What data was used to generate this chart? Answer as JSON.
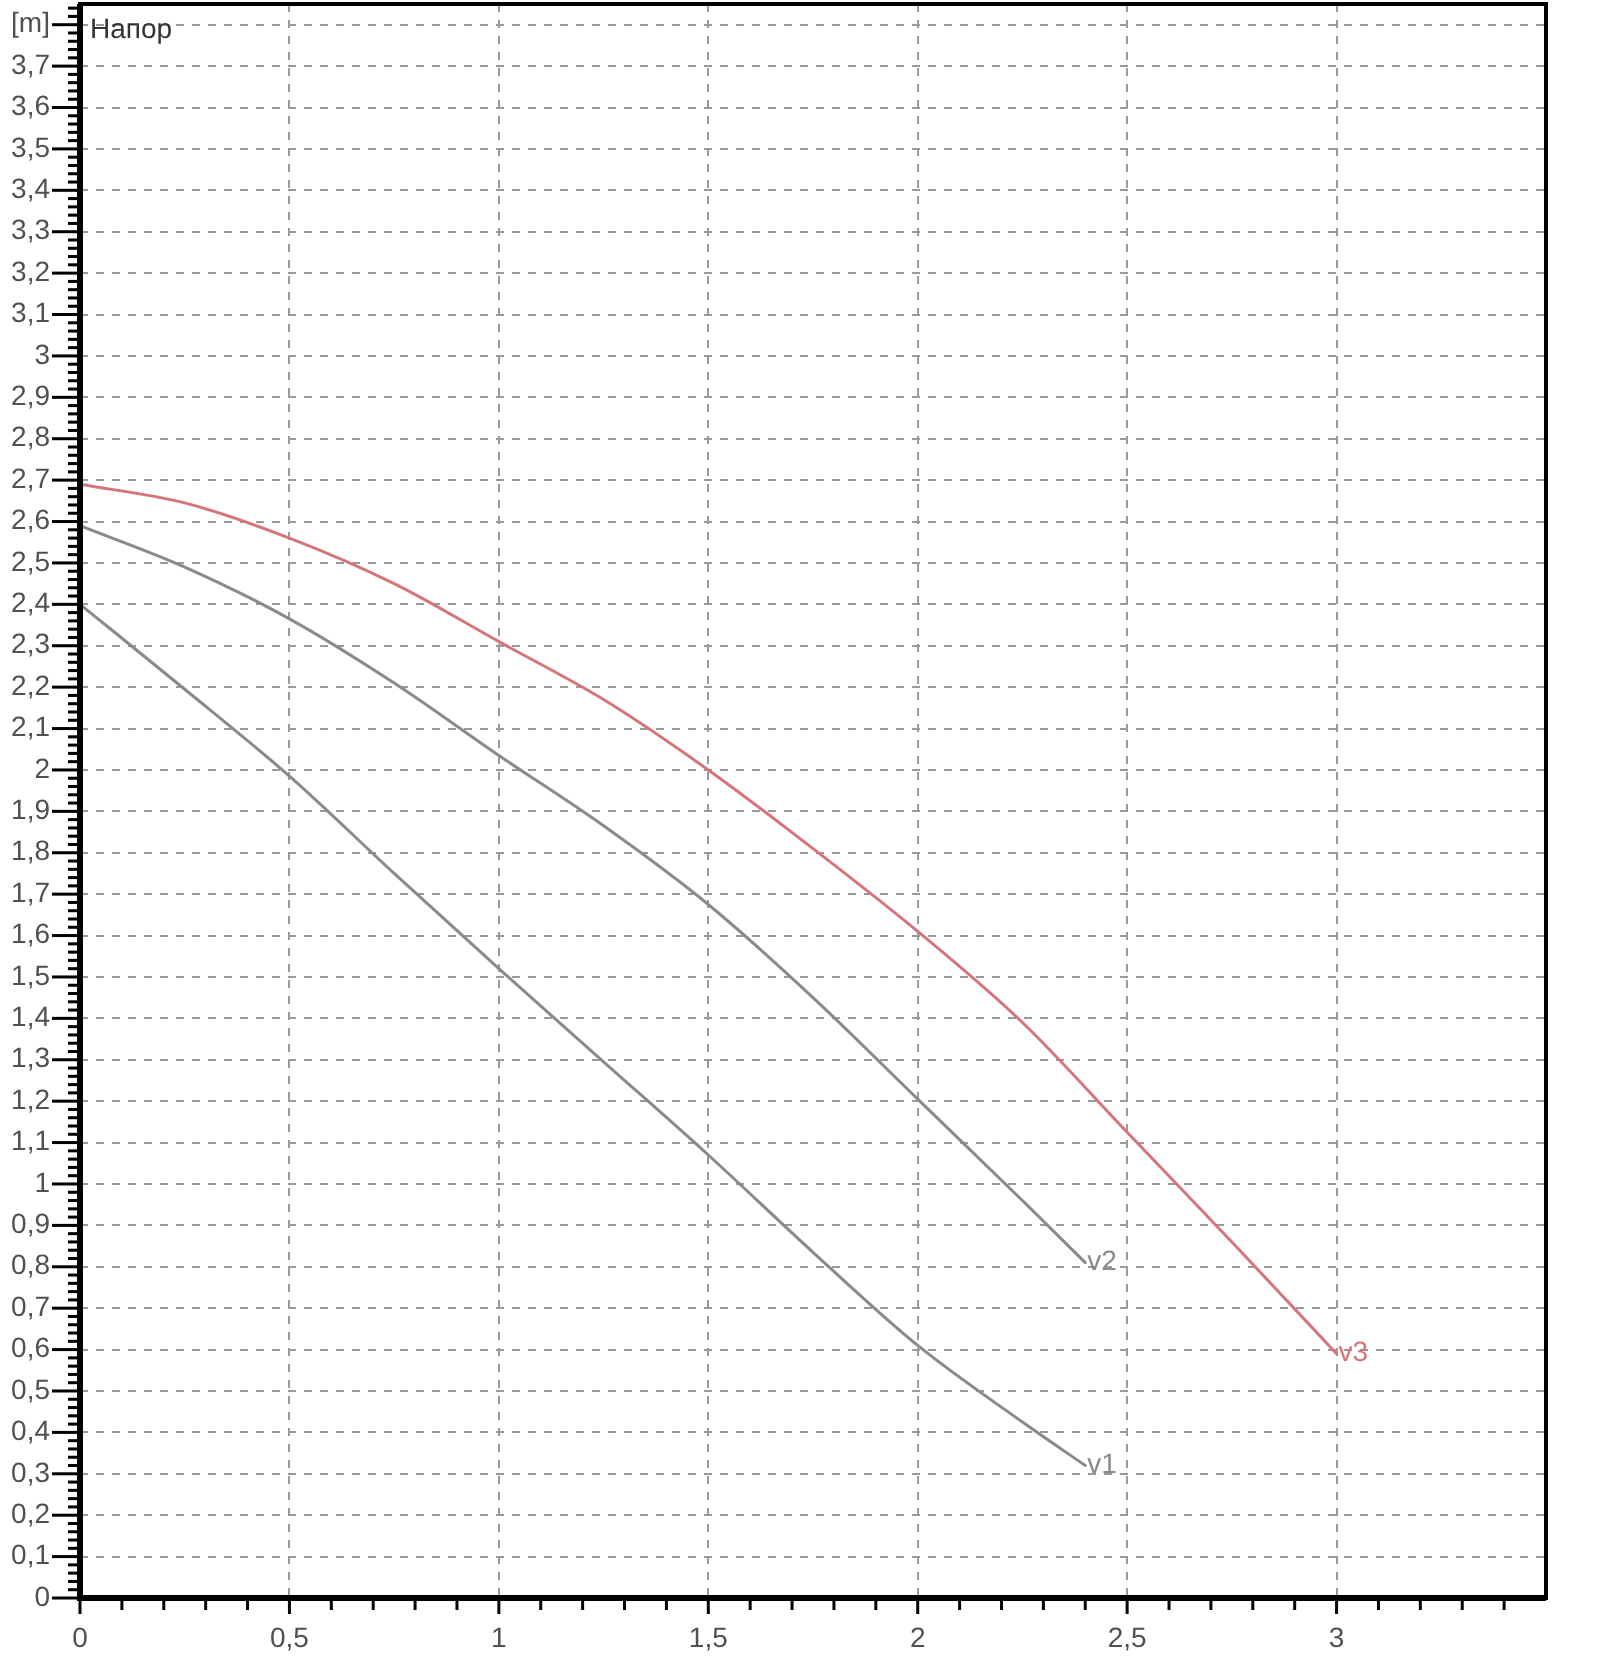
{
  "chart_data": {
    "type": "line",
    "title": "Напор",
    "series": [
      {
        "name": "v1",
        "color": "#8a8a8a",
        "x": [
          0,
          0.25,
          0.5,
          0.75,
          1,
          1.25,
          1.5,
          1.75,
          2,
          2.25,
          2.4
        ],
        "values": [
          2.4,
          2.195,
          1.985,
          1.75,
          1.52,
          1.295,
          1.07,
          0.835,
          0.61,
          0.425,
          0.32
        ]
      },
      {
        "name": "v2",
        "color": "#8a8a8a",
        "x": [
          0,
          0.25,
          0.5,
          0.75,
          1,
          1.25,
          1.5,
          1.75,
          2,
          2.25,
          2.4
        ],
        "values": [
          2.59,
          2.49,
          2.365,
          2.21,
          2.035,
          1.865,
          1.675,
          1.45,
          1.205,
          0.96,
          0.81
        ]
      },
      {
        "name": "v3",
        "color": "#d4757c",
        "x": [
          0,
          0.25,
          0.5,
          0.75,
          1,
          1.25,
          1.5,
          1.75,
          2,
          2.25,
          2.5,
          2.75,
          3
        ],
        "values": [
          2.69,
          2.645,
          2.56,
          2.45,
          2.31,
          2.17,
          2.0,
          1.81,
          1.61,
          1.39,
          1.125,
          0.86,
          0.59
        ]
      }
    ],
    "xlim": [
      0,
      3.5
    ],
    "ylim": [
      0,
      3.85
    ],
    "xticks": [
      0,
      {
        "value": 0.1,
        "label": null
      },
      {
        "value": 0.2,
        "label": null
      },
      {
        "value": 0.3,
        "label": null
      },
      {
        "value": 0.4,
        "label": null
      },
      {
        "value": 0.5,
        "label": "0,5"
      },
      {
        "value": 0.6,
        "label": null
      },
      {
        "value": 0.7,
        "label": null
      },
      {
        "value": 0.8,
        "label": null
      },
      {
        "value": 0.9,
        "label": null
      },
      1,
      {
        "value": 1.1,
        "label": null
      },
      {
        "value": 1.2,
        "label": null
      },
      {
        "value": 1.3,
        "label": null
      },
      {
        "value": 1.4,
        "label": null
      },
      {
        "value": 1.5,
        "label": "1,5"
      },
      {
        "value": 1.6,
        "label": null
      },
      {
        "value": 1.7,
        "label": null
      },
      {
        "value": 1.8,
        "label": null
      },
      {
        "value": 1.9,
        "label": null
      },
      2,
      {
        "value": 2.1,
        "label": null
      },
      {
        "value": 2.2,
        "label": null
      },
      {
        "value": 2.3,
        "label": null
      },
      {
        "value": 2.4,
        "label": null
      },
      {
        "value": 2.5,
        "label": "2,5"
      },
      {
        "value": 2.6,
        "label": null
      },
      {
        "value": 2.7,
        "label": null
      },
      {
        "value": 2.8,
        "label": null
      },
      {
        "value": 2.9,
        "label": null
      },
      3,
      {
        "value": 3.1,
        "label": null
      },
      {
        "value": 3.2,
        "label": null
      },
      {
        "value": 3.3,
        "label": null
      },
      {
        "value": 3.4,
        "label": null
      }
    ],
    "yticks": [
      0,
      {
        "value": 0.02,
        "label": null
      },
      {
        "value": 0.04,
        "label": null
      },
      {
        "value": 0.06,
        "label": null
      },
      {
        "value": 0.08,
        "label": null
      },
      {
        "value": 0.1,
        "label": "0,1"
      },
      {
        "value": 0.12,
        "label": null
      },
      {
        "value": 0.14,
        "label": null
      },
      {
        "value": 0.16,
        "label": null
      },
      {
        "value": 0.18,
        "label": null
      },
      {
        "value": 0.2,
        "label": "0,2"
      },
      {
        "value": 0.22,
        "label": null
      },
      {
        "value": 0.24,
        "label": null
      },
      {
        "value": 0.26,
        "label": null
      },
      {
        "value": 0.28,
        "label": null
      },
      {
        "value": 0.3,
        "label": "0,3"
      },
      {
        "value": 0.32,
        "label": null
      },
      {
        "value": 0.34,
        "label": null
      },
      {
        "value": 0.36,
        "label": null
      },
      {
        "value": 0.38,
        "label": null
      },
      {
        "value": 0.4,
        "label": "0,4"
      },
      {
        "value": 0.42,
        "label": null
      },
      {
        "value": 0.44,
        "label": null
      },
      {
        "value": 0.46,
        "label": null
      },
      {
        "value": 0.48,
        "label": null
      },
      {
        "value": 0.5,
        "label": "0,5"
      },
      {
        "value": 0.52,
        "label": null
      },
      {
        "value": 0.54,
        "label": null
      },
      {
        "value": 0.56,
        "label": null
      },
      {
        "value": 0.58,
        "label": null
      },
      {
        "value": 0.6,
        "label": "0,6"
      },
      {
        "value": 0.62,
        "label": null
      },
      {
        "value": 0.64,
        "label": null
      },
      {
        "value": 0.66,
        "label": null
      },
      {
        "value": 0.68,
        "label": null
      },
      {
        "value": 0.7,
        "label": "0,7"
      },
      {
        "value": 0.72,
        "label": null
      },
      {
        "value": 0.74,
        "label": null
      },
      {
        "value": 0.76,
        "label": null
      },
      {
        "value": 0.78,
        "label": null
      },
      {
        "value": 0.8,
        "label": "0,8"
      },
      {
        "value": 0.82,
        "label": null
      },
      {
        "value": 0.84,
        "label": null
      },
      {
        "value": 0.86,
        "label": null
      },
      {
        "value": 0.88,
        "label": null
      },
      {
        "value": 0.9,
        "label": "0,9"
      },
      {
        "value": 0.92,
        "label": null
      },
      {
        "value": 0.94,
        "label": null
      },
      {
        "value": 0.96,
        "label": null
      },
      {
        "value": 0.98,
        "label": null
      },
      1,
      {
        "value": 1.02,
        "label": null
      },
      {
        "value": 1.04,
        "label": null
      },
      {
        "value": 1.06,
        "label": null
      },
      {
        "value": 1.08,
        "label": null
      },
      {
        "value": 1.1,
        "label": "1,1"
      },
      {
        "value": 1.12,
        "label": null
      },
      {
        "value": 1.14,
        "label": null
      },
      {
        "value": 1.16,
        "label": null
      },
      {
        "value": 1.18,
        "label": null
      },
      {
        "value": 1.2,
        "label": "1,2"
      },
      {
        "value": 1.22,
        "label": null
      },
      {
        "value": 1.24,
        "label": null
      },
      {
        "value": 1.26,
        "label": null
      },
      {
        "value": 1.28,
        "label": null
      },
      {
        "value": 1.3,
        "label": "1,3"
      },
      {
        "value": 1.32,
        "label": null
      },
      {
        "value": 1.34,
        "label": null
      },
      {
        "value": 1.36,
        "label": null
      },
      {
        "value": 1.38,
        "label": null
      },
      {
        "value": 1.4,
        "label": "1,4"
      },
      {
        "value": 1.42,
        "label": null
      },
      {
        "value": 1.44,
        "label": null
      },
      {
        "value": 1.46,
        "label": null
      },
      {
        "value": 1.48,
        "label": null
      },
      {
        "value": 1.5,
        "label": "1,5"
      },
      {
        "value": 1.52,
        "label": null
      },
      {
        "value": 1.54,
        "label": null
      },
      {
        "value": 1.56,
        "label": null
      },
      {
        "value": 1.58,
        "label": null
      },
      {
        "value": 1.6,
        "label": "1,6"
      },
      {
        "value": 1.62,
        "label": null
      },
      {
        "value": 1.64,
        "label": null
      },
      {
        "value": 1.66,
        "label": null
      },
      {
        "value": 1.68,
        "label": null
      },
      {
        "value": 1.7,
        "label": "1,7"
      },
      {
        "value": 1.72,
        "label": null
      },
      {
        "value": 1.74,
        "label": null
      },
      {
        "value": 1.76,
        "label": null
      },
      {
        "value": 1.78,
        "label": null
      },
      {
        "value": 1.8,
        "label": "1,8"
      },
      {
        "value": 1.82,
        "label": null
      },
      {
        "value": 1.84,
        "label": null
      },
      {
        "value": 1.86,
        "label": null
      },
      {
        "value": 1.88,
        "label": null
      },
      {
        "value": 1.9,
        "label": "1,9"
      },
      {
        "value": 1.92,
        "label": null
      },
      {
        "value": 1.94,
        "label": null
      },
      {
        "value": 1.96,
        "label": null
      },
      {
        "value": 1.98,
        "label": null
      },
      2,
      {
        "value": 2.02,
        "label": null
      },
      {
        "value": 2.04,
        "label": null
      },
      {
        "value": 2.06,
        "label": null
      },
      {
        "value": 2.08,
        "label": null
      },
      {
        "value": 2.1,
        "label": "2,1"
      },
      {
        "value": 2.12,
        "label": null
      },
      {
        "value": 2.14,
        "label": null
      },
      {
        "value": 2.16,
        "label": null
      },
      {
        "value": 2.18,
        "label": null
      },
      {
        "value": 2.2,
        "label": "2,2"
      },
      {
        "value": 2.22,
        "label": null
      },
      {
        "value": 2.24,
        "label": null
      },
      {
        "value": 2.26,
        "label": null
      },
      {
        "value": 2.28,
        "label": null
      },
      {
        "value": 2.3,
        "label": "2,3"
      },
      {
        "value": 2.32,
        "label": null
      },
      {
        "value": 2.34,
        "label": null
      },
      {
        "value": 2.36,
        "label": null
      },
      {
        "value": 2.38,
        "label": null
      },
      {
        "value": 2.4,
        "label": "2,4"
      },
      {
        "value": 2.42,
        "label": null
      },
      {
        "value": 2.44,
        "label": null
      },
      {
        "value": 2.46,
        "label": null
      },
      {
        "value": 2.48,
        "label": null
      },
      {
        "value": 2.5,
        "label": "2,5"
      },
      {
        "value": 2.52,
        "label": null
      },
      {
        "value": 2.54,
        "label": null
      },
      {
        "value": 2.56,
        "label": null
      },
      {
        "value": 2.58,
        "label": null
      },
      {
        "value": 2.6,
        "label": "2,6"
      },
      {
        "value": 2.62,
        "label": null
      },
      {
        "value": 2.64,
        "label": null
      },
      {
        "value": 2.66,
        "label": null
      },
      {
        "value": 2.68,
        "label": null
      },
      {
        "value": 2.7,
        "label": "2,7"
      },
      {
        "value": 2.72,
        "label": null
      },
      {
        "value": 2.74,
        "label": null
      },
      {
        "value": 2.76,
        "label": null
      },
      {
        "value": 2.78,
        "label": null
      },
      {
        "value": 2.8,
        "label": "2,8"
      },
      {
        "value": 2.82,
        "label": null
      },
      {
        "value": 2.84,
        "label": null
      },
      {
        "value": 2.86,
        "label": null
      },
      {
        "value": 2.88,
        "label": null
      },
      {
        "value": 2.9,
        "label": "2,9"
      },
      {
        "value": 2.92,
        "label": null
      },
      {
        "value": 2.94,
        "label": null
      },
      {
        "value": 2.96,
        "label": null
      },
      {
        "value": 2.98,
        "label": null
      },
      3,
      {
        "value": 3.02,
        "label": null
      },
      {
        "value": 3.04,
        "label": null
      },
      {
        "value": 3.06,
        "label": null
      },
      {
        "value": 3.08,
        "label": null
      },
      {
        "value": 3.1,
        "label": "3,1"
      },
      {
        "value": 3.12,
        "label": null
      },
      {
        "value": 3.14,
        "label": null
      },
      {
        "value": 3.16,
        "label": null
      },
      {
        "value": 3.18,
        "label": null
      },
      {
        "value": 3.2,
        "label": "3,2"
      },
      {
        "value": 3.22,
        "label": null
      },
      {
        "value": 3.24,
        "label": null
      },
      {
        "value": 3.26,
        "label": null
      },
      {
        "value": 3.28,
        "label": null
      },
      {
        "value": 3.3,
        "label": "3,3"
      },
      {
        "value": 3.32,
        "label": null
      },
      {
        "value": 3.34,
        "label": null
      },
      {
        "value": 3.36,
        "label": null
      },
      {
        "value": 3.38,
        "label": null
      },
      {
        "value": 3.4,
        "label": "3,4"
      },
      {
        "value": 3.42,
        "label": null
      },
      {
        "value": 3.44,
        "label": null
      },
      {
        "value": 3.46,
        "label": null
      },
      {
        "value": 3.48,
        "label": null
      },
      {
        "value": 3.5,
        "label": "3,5"
      },
      {
        "value": 3.52,
        "label": null
      },
      {
        "value": 3.54,
        "label": null
      },
      {
        "value": 3.56,
        "label": null
      },
      {
        "value": 3.58,
        "label": null
      },
      {
        "value": 3.6,
        "label": "3,6"
      },
      {
        "value": 3.62,
        "label": null
      },
      {
        "value": 3.64,
        "label": null
      },
      {
        "value": 3.66,
        "label": null
      },
      {
        "value": 3.68,
        "label": null
      },
      {
        "value": 3.7,
        "label": "3,7"
      },
      {
        "value": 3.72,
        "label": null
      },
      {
        "value": 3.74,
        "label": null
      },
      {
        "value": 3.76,
        "label": null
      },
      {
        "value": 3.78,
        "label": null
      },
      {
        "value": 3.8,
        "label": "[m]"
      },
      {
        "value": 3.82,
        "label": null
      },
      {
        "value": 3.84,
        "label": null
      }
    ],
    "grid": true
  }
}
